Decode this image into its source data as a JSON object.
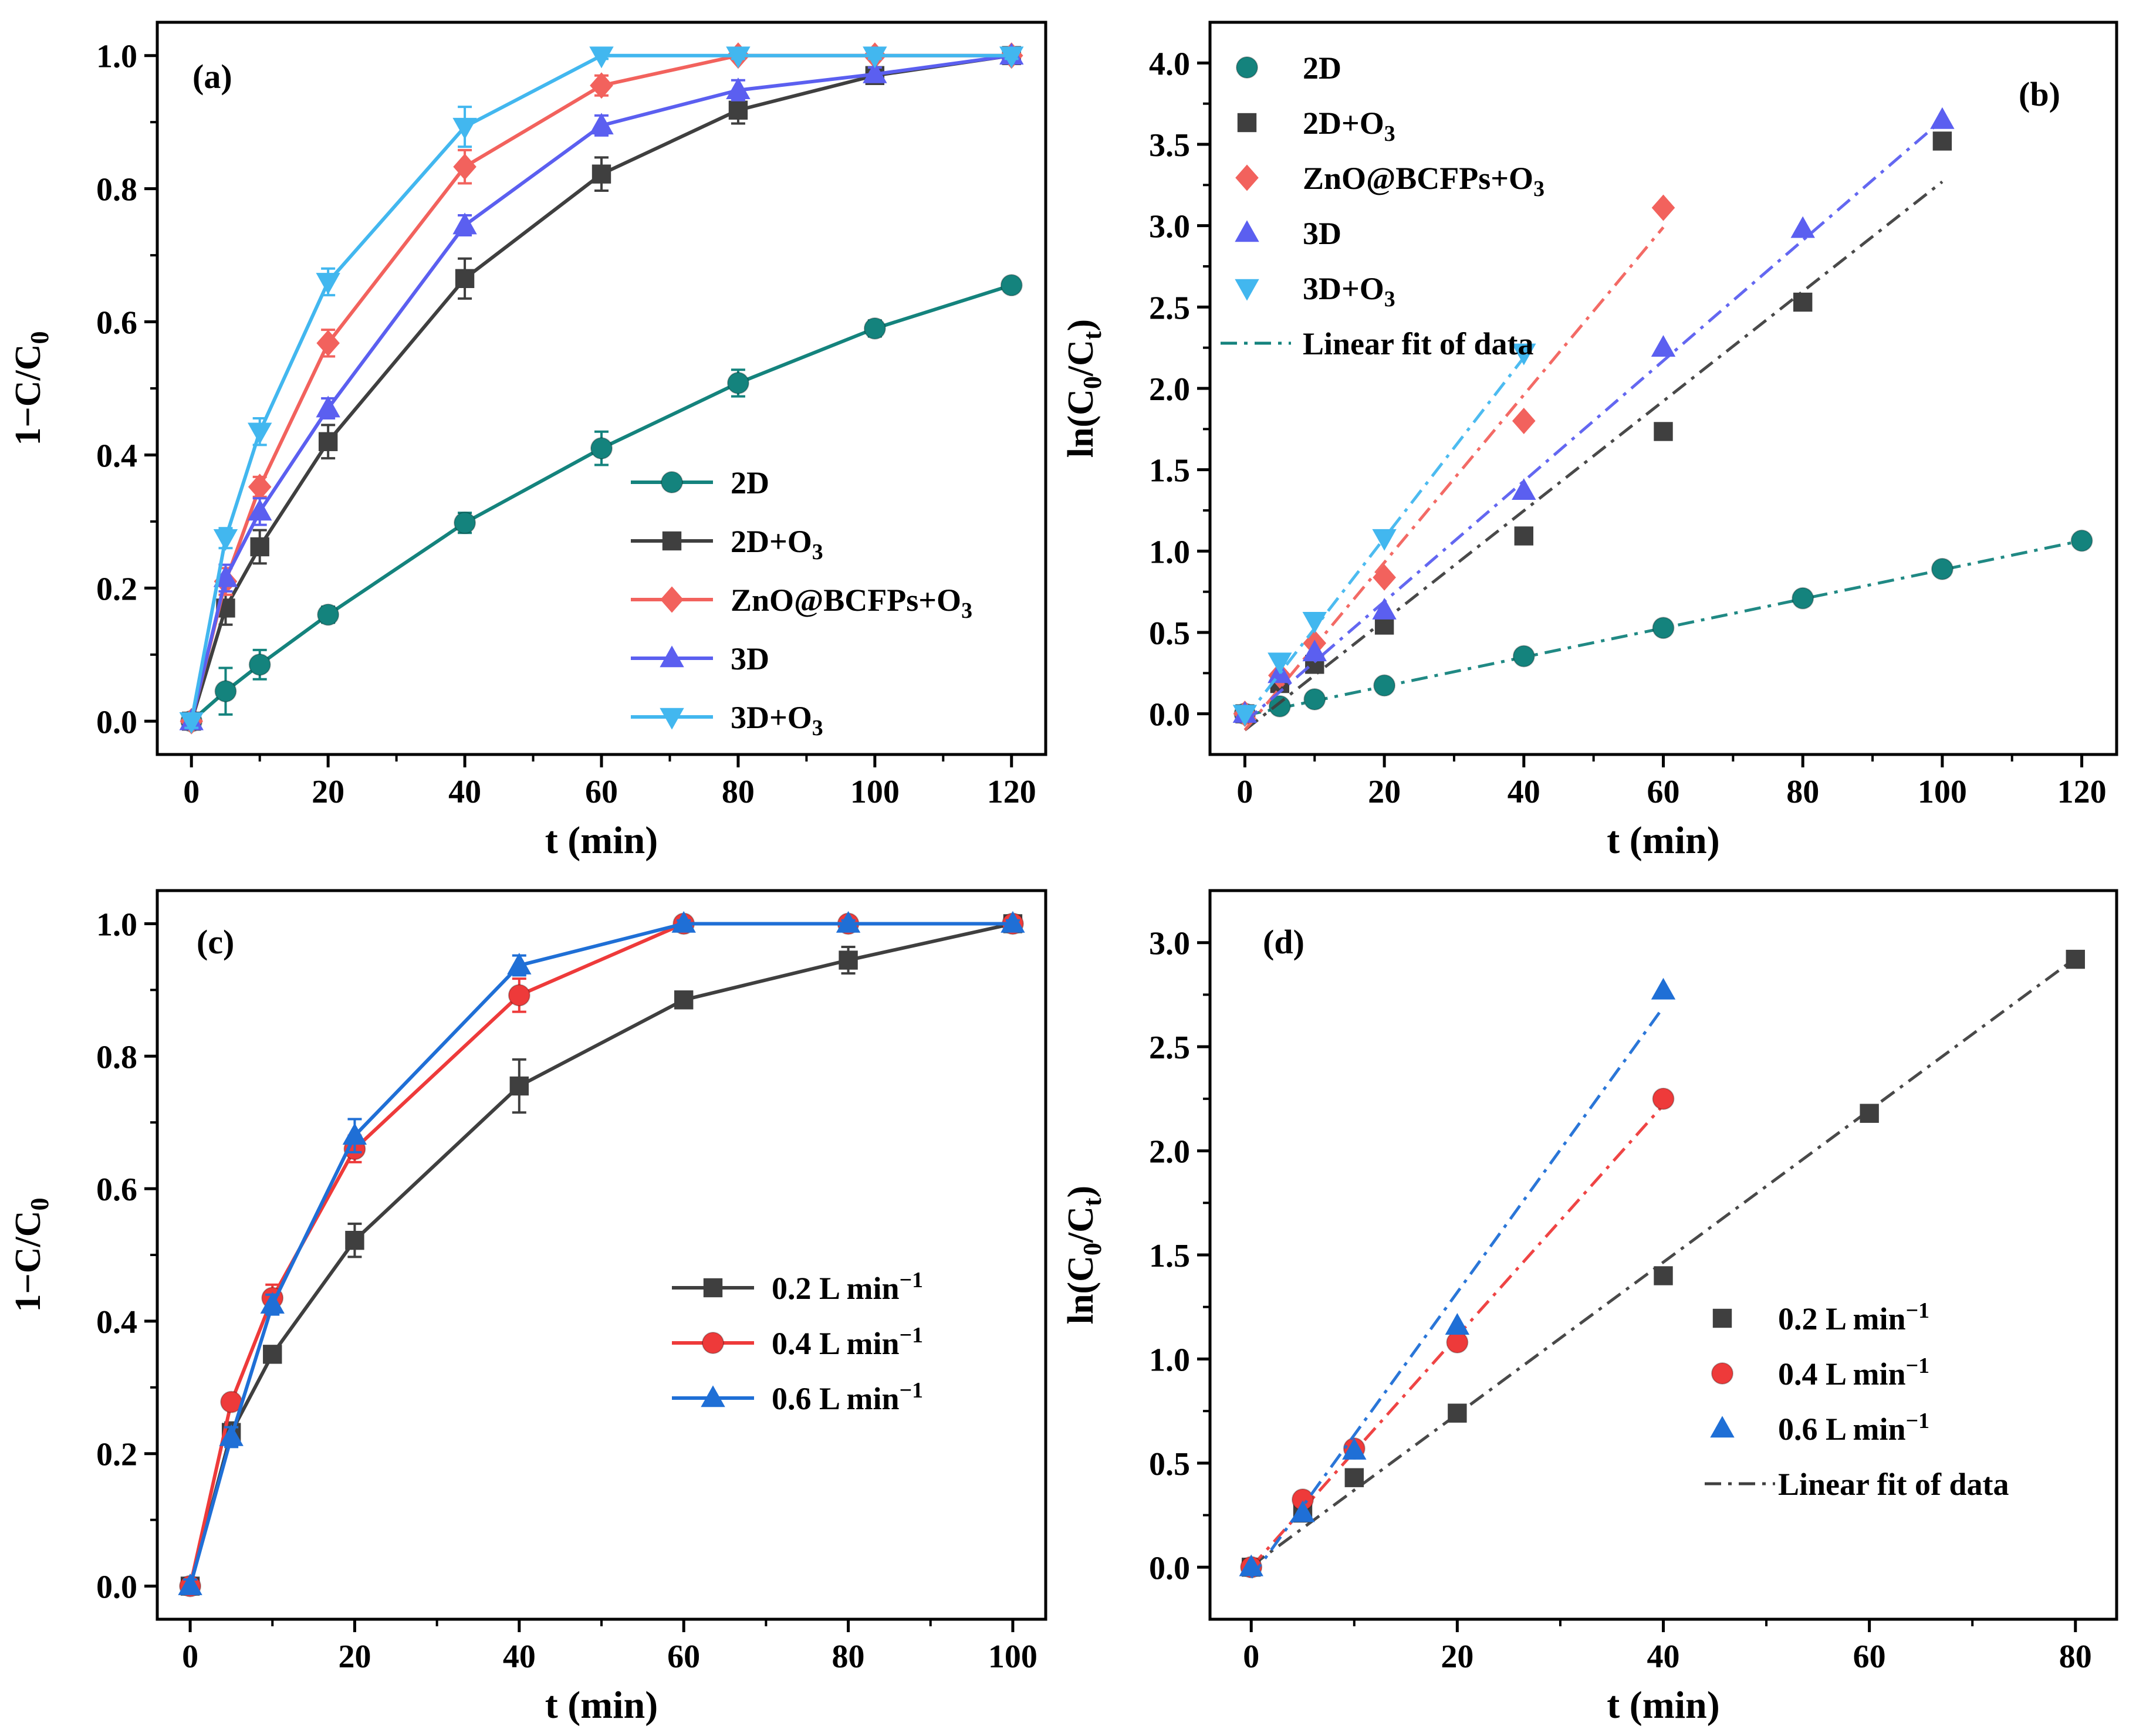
{
  "figure": {
    "panels": [
      {
        "label": "(a)",
        "xlabel": "t (min)"
      },
      {
        "label": "(b)",
        "xlabel": "t (min)"
      },
      {
        "label": "(c)",
        "xlabel": "t (min)"
      },
      {
        "label": "(d)",
        "xlabel": "t (min)"
      }
    ]
  },
  "chart_data": [
    {
      "panel": "(a)",
      "type": "line",
      "xlabel": "t (min)",
      "ylabel": "1−C/C0",
      "xlim": [
        -5,
        125
      ],
      "ylim": [
        -0.05,
        1.05
      ],
      "xticks": [
        0,
        20,
        40,
        60,
        80,
        100,
        120
      ],
      "yticks": [
        0.0,
        0.2,
        0.4,
        0.6,
        0.8,
        1.0
      ],
      "grid": false,
      "legend_position": "lower-right",
      "series": [
        {
          "name": "2D",
          "color": "#14837d",
          "marker": "circle",
          "x": [
            0,
            5,
            10,
            20,
            40,
            60,
            80,
            100,
            120
          ],
          "y": [
            0.0,
            0.045,
            0.085,
            0.16,
            0.298,
            0.41,
            0.508,
            0.59,
            0.655
          ],
          "err": [
            0.01,
            0.035,
            0.022,
            0.012,
            0.015,
            0.025,
            0.02,
            0.012,
            0.01
          ]
        },
        {
          "name": "2D+O3",
          "color": "#3f3f3f",
          "marker": "square",
          "x": [
            0,
            5,
            10,
            20,
            40,
            60,
            80,
            100,
            120
          ],
          "y": [
            0.0,
            0.17,
            0.262,
            0.42,
            0.665,
            0.822,
            0.918,
            0.97,
            1.0
          ],
          "err": [
            0.01,
            0.025,
            0.025,
            0.025,
            0.03,
            0.025,
            0.02,
            0.012,
            0.005
          ]
        },
        {
          "name": "ZnO@BCFPs+O3",
          "color": "#f2625d",
          "marker": "diamond",
          "x": [
            0,
            5,
            10,
            20,
            40,
            60,
            80,
            100,
            120
          ],
          "y": [
            0.0,
            0.21,
            0.352,
            0.568,
            0.833,
            0.955,
            1.0,
            1.0,
            1.0
          ],
          "err": [
            0.01,
            0.02,
            0.015,
            0.02,
            0.025,
            0.015,
            0.005,
            0.005,
            0.005
          ]
        },
        {
          "name": "3D",
          "color": "#5b5ff0",
          "marker": "triangle-up",
          "x": [
            0,
            5,
            10,
            20,
            40,
            60,
            80,
            100,
            120
          ],
          "y": [
            0.0,
            0.215,
            0.315,
            0.47,
            0.745,
            0.895,
            0.948,
            0.972,
            1.0
          ],
          "err": [
            0.01,
            0.02,
            0.02,
            0.015,
            0.015,
            0.015,
            0.015,
            0.01,
            0.005
          ]
        },
        {
          "name": "3D+O3",
          "color": "#42b7ef",
          "marker": "triangle-down",
          "x": [
            0,
            5,
            10,
            20,
            40,
            60,
            80,
            100,
            120
          ],
          "y": [
            0.0,
            0.275,
            0.435,
            0.66,
            0.893,
            1.0,
            1.0,
            1.0,
            1.0
          ],
          "err": [
            0.01,
            0.015,
            0.02,
            0.02,
            0.03,
            0.005,
            0.005,
            0.005,
            0.005
          ]
        }
      ]
    },
    {
      "panel": "(b)",
      "type": "scatter",
      "xlabel": "t (min)",
      "ylabel": "ln(C0/Ct)",
      "xlim": [
        -5,
        125
      ],
      "ylim": [
        -0.25,
        4.25
      ],
      "xticks": [
        0,
        20,
        40,
        60,
        80,
        100,
        120
      ],
      "yticks": [
        0.0,
        0.5,
        1.0,
        1.5,
        2.0,
        2.5,
        3.0,
        3.5,
        4.0
      ],
      "grid": false,
      "legend_position": "top-left",
      "fit_legend": "Linear fit of data",
      "series": [
        {
          "name": "2D",
          "color": "#14837d",
          "marker": "circle",
          "x": [
            0,
            5,
            10,
            20,
            40,
            60,
            80,
            100,
            120
          ],
          "y": [
            0.0,
            0.046,
            0.089,
            0.174,
            0.354,
            0.528,
            0.71,
            0.89,
            1.064
          ],
          "fit": [
            -0.01,
            0.00895
          ]
        },
        {
          "name": "2D+O3",
          "color": "#3f3f3f",
          "marker": "square",
          "x": [
            0,
            5,
            10,
            20,
            40,
            60,
            80,
            100
          ],
          "y": [
            0.0,
            0.186,
            0.304,
            0.545,
            1.093,
            1.735,
            2.53,
            3.52
          ],
          "fit": [
            -0.1,
            0.0337
          ]
        },
        {
          "name": "ZnO@BCFPs+O3",
          "color": "#f2625d",
          "marker": "diamond",
          "x": [
            0,
            5,
            10,
            20,
            40,
            60
          ],
          "y": [
            0.0,
            0.236,
            0.434,
            0.838,
            1.8,
            3.11
          ],
          "fit": [
            -0.1,
            0.0515
          ]
        },
        {
          "name": "3D",
          "color": "#5b5ff0",
          "marker": "triangle-up",
          "x": [
            0,
            5,
            10,
            20,
            40,
            60,
            80,
            100
          ],
          "y": [
            0.0,
            0.244,
            0.378,
            0.635,
            1.37,
            2.25,
            2.98,
            3.65
          ],
          "fit": [
            -0.05,
            0.037
          ]
        },
        {
          "name": "3D+O3",
          "color": "#42b7ef",
          "marker": "triangle-down",
          "x": [
            0,
            5,
            10,
            20,
            40
          ],
          "y": [
            0.0,
            0.321,
            0.571,
            1.08,
            2.22
          ],
          "fit": [
            -0.03,
            0.0555
          ]
        }
      ]
    },
    {
      "panel": "(c)",
      "type": "line",
      "xlabel": "t (min)",
      "ylabel": "1−C/C0",
      "xlim": [
        -4,
        104
      ],
      "ylim": [
        -0.05,
        1.05
      ],
      "xticks": [
        0,
        20,
        40,
        60,
        80,
        100
      ],
      "yticks": [
        0.0,
        0.2,
        0.4,
        0.6,
        0.8,
        1.0
      ],
      "grid": false,
      "legend_position": "center-right",
      "series": [
        {
          "name": "0.2 L min⁻¹",
          "color": "#3f3f3f",
          "marker": "square",
          "x": [
            0,
            5,
            10,
            20,
            40,
            60,
            80,
            100
          ],
          "y": [
            0.0,
            0.232,
            0.35,
            0.522,
            0.755,
            0.885,
            0.945,
            1.0
          ],
          "err": [
            0.01,
            0.015,
            0.01,
            0.025,
            0.04,
            0.01,
            0.02,
            0.005
          ]
        },
        {
          "name": "0.4 L min⁻¹",
          "color": "#ee3a3a",
          "marker": "circle",
          "x": [
            0,
            5,
            10,
            20,
            40,
            60,
            80,
            100
          ],
          "y": [
            0.0,
            0.278,
            0.435,
            0.66,
            0.892,
            1.0,
            1.0,
            1.0
          ],
          "err": [
            0.01,
            0.01,
            0.02,
            0.02,
            0.025,
            0.005,
            0.005,
            0.005
          ]
        },
        {
          "name": "0.6 L min⁻¹",
          "color": "#1f6fd6",
          "marker": "triangle-up",
          "x": [
            0,
            5,
            10,
            20,
            40,
            60,
            80,
            100
          ],
          "y": [
            0.0,
            0.225,
            0.425,
            0.68,
            0.937,
            1.0,
            1.0,
            1.0
          ],
          "err": [
            0.01,
            0.015,
            0.015,
            0.025,
            0.015,
            0.005,
            0.005,
            0.005
          ]
        }
      ]
    },
    {
      "panel": "(d)",
      "type": "scatter",
      "xlabel": "t (min)",
      "ylabel": "ln(C0/Ct)",
      "xlim": [
        -4,
        84
      ],
      "ylim": [
        -0.25,
        3.25
      ],
      "xticks": [
        0,
        20,
        40,
        60,
        80
      ],
      "yticks": [
        0.0,
        0.5,
        1.0,
        1.5,
        2.0,
        2.5,
        3.0
      ],
      "grid": false,
      "legend_position": "lower-right",
      "fit_legend": "Linear fit of data",
      "series": [
        {
          "name": "0.2 L min⁻¹",
          "color": "#3f3f3f",
          "marker": "square",
          "x": [
            0,
            5,
            10,
            20,
            40,
            60,
            80
          ],
          "y": [
            0.0,
            0.26,
            0.43,
            0.74,
            1.4,
            2.18,
            2.92
          ],
          "fit": [
            0.005,
            0.0365
          ]
        },
        {
          "name": "0.4 L min⁻¹",
          "color": "#ee3a3a",
          "marker": "circle",
          "x": [
            0,
            5,
            10,
            20,
            40
          ],
          "y": [
            0.0,
            0.325,
            0.57,
            1.08,
            2.25
          ],
          "fit": [
            0.0,
            0.0555
          ]
        },
        {
          "name": "0.6 L min⁻¹",
          "color": "#1f6fd6",
          "marker": "triangle-up",
          "x": [
            0,
            5,
            10,
            20,
            40
          ],
          "y": [
            0.0,
            0.26,
            0.56,
            1.16,
            2.77
          ],
          "fit": [
            -0.05,
            0.0685
          ]
        }
      ]
    }
  ]
}
